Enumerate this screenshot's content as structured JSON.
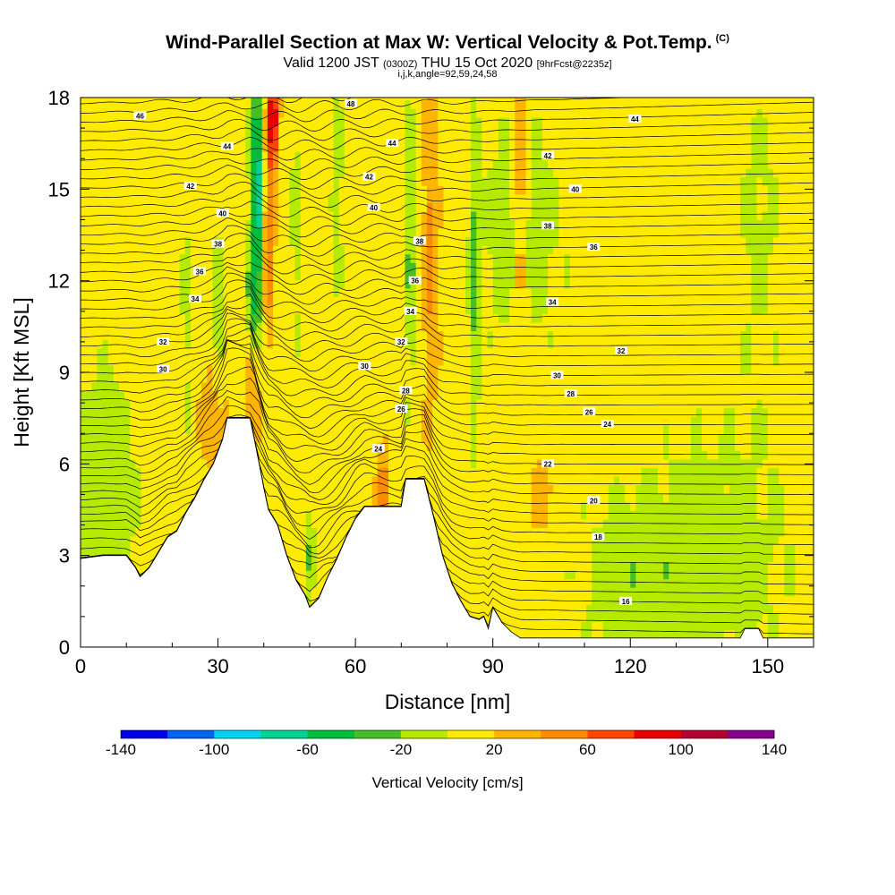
{
  "title": {
    "main": "Wind-Parallel Section at Max W: Vertical Velocity & Pot.Temp.",
    "copyright": "(C)",
    "valid_prefix": "Valid 1200 JST",
    "valid_utc": "(0300Z)",
    "valid_date": "THU 15 Oct 2020",
    "forecast_info": "[9hrFcst@2235z]",
    "ijk_info": "i,j,k,angle=92,59,24,58"
  },
  "chart_data": {
    "type": "heatmap",
    "xlabel": "Distance [nm]",
    "ylabel": "Height [Kft MSL]",
    "xlim": [
      0,
      160
    ],
    "ylim": [
      0,
      18
    ],
    "xticks": [
      0,
      30,
      60,
      90,
      120,
      150
    ],
    "yticks": [
      0,
      3,
      6,
      9,
      12,
      15,
      18
    ],
    "colorbar": {
      "title": "Vertical Velocity [cm/s]",
      "tick_labels": [
        "-140",
        "-100",
        "-60",
        "-20",
        "20",
        "60",
        "100",
        "140"
      ],
      "levels": [
        -140,
        -120,
        -100,
        -80,
        -60,
        -40,
        -20,
        0,
        20,
        40,
        60,
        80,
        100,
        120,
        140
      ],
      "colors": [
        "#0000e6",
        "#0064f0",
        "#00d2f0",
        "#00d296",
        "#00be3c",
        "#46be28",
        "#b4eb00",
        "#ffeb00",
        "#ffb400",
        "#ff8c00",
        "#ff4600",
        "#e60000",
        "#b40032",
        "#82008c"
      ]
    },
    "terrain_profile": [
      [
        0,
        2.9
      ],
      [
        5,
        3.0
      ],
      [
        10,
        3.0
      ],
      [
        12,
        2.6
      ],
      [
        13,
        2.3
      ],
      [
        15,
        2.6
      ],
      [
        17,
        3.1
      ],
      [
        19,
        3.6
      ],
      [
        21,
        3.8
      ],
      [
        23,
        4.4
      ],
      [
        25,
        4.9
      ],
      [
        27,
        5.5
      ],
      [
        29,
        6.0
      ],
      [
        31,
        6.8
      ],
      [
        32,
        7.5
      ],
      [
        37,
        7.5
      ],
      [
        39,
        6.0
      ],
      [
        40,
        5.2
      ],
      [
        41,
        4.5
      ],
      [
        43,
        4.0
      ],
      [
        45,
        3.0
      ],
      [
        47,
        2.2
      ],
      [
        49,
        1.7
      ],
      [
        50,
        1.3
      ],
      [
        52,
        1.6
      ],
      [
        54,
        2.3
      ],
      [
        56,
        2.9
      ],
      [
        58,
        3.6
      ],
      [
        60,
        4.2
      ],
      [
        62,
        4.6
      ],
      [
        70,
        4.6
      ],
      [
        71,
        5.5
      ],
      [
        75,
        5.5
      ],
      [
        77,
        4.3
      ],
      [
        79,
        3.0
      ],
      [
        81,
        2.1
      ],
      [
        83,
        1.5
      ],
      [
        85,
        1.0
      ],
      [
        87,
        0.9
      ],
      [
        88,
        1.0
      ],
      [
        89,
        0.6
      ],
      [
        90,
        1.3
      ],
      [
        92,
        0.8
      ],
      [
        94,
        0.5
      ],
      [
        96,
        0.3
      ],
      [
        144,
        0.3
      ],
      [
        145,
        0.6
      ],
      [
        148,
        0.6
      ],
      [
        149,
        0.3
      ],
      [
        160,
        0.3
      ]
    ],
    "theta_contour_labels": [
      {
        "x": 13,
        "y": 17.4,
        "value": "46"
      },
      {
        "x": 59,
        "y": 17.8,
        "value": "48"
      },
      {
        "x": 121,
        "y": 17.3,
        "value": "44"
      },
      {
        "x": 32,
        "y": 16.4,
        "value": "44"
      },
      {
        "x": 68,
        "y": 16.5,
        "value": "44"
      },
      {
        "x": 102,
        "y": 16.1,
        "value": "42"
      },
      {
        "x": 24,
        "y": 15.1,
        "value": "42"
      },
      {
        "x": 63,
        "y": 15.4,
        "value": "42"
      },
      {
        "x": 108,
        "y": 15.0,
        "value": "40"
      },
      {
        "x": 31,
        "y": 14.2,
        "value": "40"
      },
      {
        "x": 64,
        "y": 14.4,
        "value": "40"
      },
      {
        "x": 102,
        "y": 13.8,
        "value": "38"
      },
      {
        "x": 30,
        "y": 13.2,
        "value": "38"
      },
      {
        "x": 74,
        "y": 13.3,
        "value": "38"
      },
      {
        "x": 112,
        "y": 13.1,
        "value": "36"
      },
      {
        "x": 26,
        "y": 12.3,
        "value": "36"
      },
      {
        "x": 73,
        "y": 12.0,
        "value": "36"
      },
      {
        "x": 25,
        "y": 11.4,
        "value": "34"
      },
      {
        "x": 72,
        "y": 11.0,
        "value": "34"
      },
      {
        "x": 103,
        "y": 11.3,
        "value": "34"
      },
      {
        "x": 18,
        "y": 10.0,
        "value": "32"
      },
      {
        "x": 70,
        "y": 10.0,
        "value": "32"
      },
      {
        "x": 118,
        "y": 9.7,
        "value": "32"
      },
      {
        "x": 18,
        "y": 9.1,
        "value": "30"
      },
      {
        "x": 62,
        "y": 9.2,
        "value": "30"
      },
      {
        "x": 104,
        "y": 8.9,
        "value": "30"
      },
      {
        "x": 71,
        "y": 8.4,
        "value": "28"
      },
      {
        "x": 107,
        "y": 8.3,
        "value": "28"
      },
      {
        "x": 70,
        "y": 7.8,
        "value": "26"
      },
      {
        "x": 111,
        "y": 7.7,
        "value": "26"
      },
      {
        "x": 115,
        "y": 7.3,
        "value": "24"
      },
      {
        "x": 65,
        "y": 6.5,
        "value": "24"
      },
      {
        "x": 102,
        "y": 6.0,
        "value": "22"
      },
      {
        "x": 112,
        "y": 4.8,
        "value": "20"
      },
      {
        "x": 113,
        "y": 3.6,
        "value": "18"
      },
      {
        "x": 119,
        "y": 1.5,
        "value": "16"
      }
    ]
  }
}
